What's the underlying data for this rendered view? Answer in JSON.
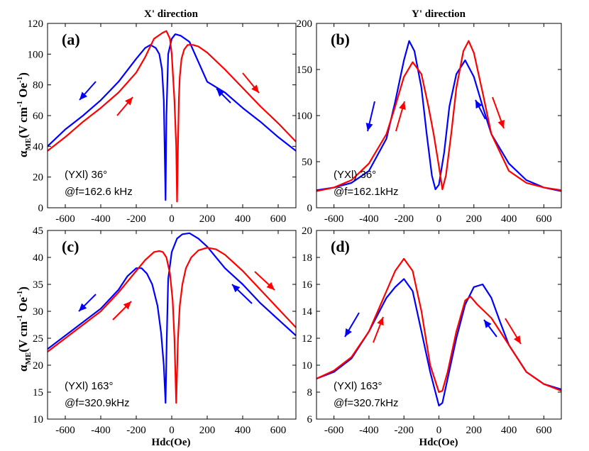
{
  "figure": {
    "header_left": "X' direction",
    "header_right": "Y' direction",
    "ylabel_main": "α",
    "ylabel_sub": "ME",
    "ylabel_top": "(V cm",
    "ylabel_exp": "-1",
    "ylabel_mid": " Oe",
    "ylabel_end": ")",
    "xlabel": "Hdc(Oe)"
  },
  "colors": {
    "up": "#0000ff",
    "down": "#ff0000"
  },
  "chart_data": [
    {
      "type": "line",
      "panel": "(a)",
      "title": "(a)",
      "annotation_line1": "(YXl) 36°",
      "annotation_line2": "@f=162.6 kHz",
      "xlabel": "",
      "ylabel": "αME(V cm-1 Oe-1)",
      "xlim": [
        -700,
        700
      ],
      "ylim": [
        0,
        120
      ],
      "xticks": [
        -600,
        -400,
        -200,
        0,
        200,
        400,
        600
      ],
      "yticks": [
        0,
        20,
        40,
        60,
        80,
        100,
        120
      ],
      "series": [
        {
          "name": "blue",
          "color": "#0000ff",
          "x": [
            -700,
            -600,
            -500,
            -400,
            -300,
            -200,
            -150,
            -120,
            -90,
            -70,
            -55,
            -45,
            -40,
            -35,
            -30,
            -20,
            0,
            20,
            50,
            100,
            150,
            200,
            300,
            400,
            500,
            600,
            700
          ],
          "y": [
            40,
            51,
            60,
            70,
            82,
            97,
            104,
            106,
            104,
            100,
            90,
            70,
            40,
            5,
            60,
            100,
            110,
            113,
            112,
            108,
            95,
            82,
            75,
            65,
            56,
            46,
            37
          ]
        },
        {
          "name": "red",
          "color": "#ff0000",
          "x": [
            -700,
            -600,
            -500,
            -400,
            -300,
            -200,
            -150,
            -100,
            -50,
            -30,
            -10,
            0,
            15,
            25,
            30,
            35,
            40,
            45,
            55,
            70,
            90,
            120,
            150,
            200,
            300,
            400,
            500,
            600,
            700
          ],
          "y": [
            37,
            46,
            56,
            65,
            75,
            88,
            98,
            110,
            114,
            115,
            110,
            100,
            70,
            40,
            4,
            40,
            70,
            85,
            97,
            103,
            106,
            106,
            105,
            101,
            90,
            78,
            66,
            55,
            43
          ]
        }
      ],
      "arrows": [
        "left-down blue",
        "right-up red",
        "left-up blue",
        "right-down red"
      ]
    },
    {
      "type": "line",
      "panel": "(b)",
      "title": "(b)",
      "annotation_line1": "(YXl) 36°",
      "annotation_line2": "@f=162.1kHz",
      "xlabel": "",
      "ylabel": "",
      "xlim": [
        -700,
        700
      ],
      "ylim": [
        0,
        200
      ],
      "xticks": [
        -600,
        -400,
        -200,
        0,
        200,
        400,
        600
      ],
      "yticks": [
        0,
        50,
        100,
        150,
        200
      ],
      "series": [
        {
          "name": "blue",
          "color": "#0000ff",
          "x": [
            -700,
            -600,
            -500,
            -400,
            -300,
            -250,
            -200,
            -170,
            -140,
            -100,
            -70,
            -40,
            -20,
            0,
            30,
            60,
            100,
            150,
            200,
            250,
            300,
            400,
            500,
            600,
            700
          ],
          "y": [
            19,
            22,
            27,
            40,
            75,
            115,
            160,
            181,
            170,
            130,
            80,
            35,
            20,
            25,
            60,
            110,
            145,
            160,
            142,
            110,
            80,
            48,
            30,
            22,
            18
          ]
        },
        {
          "name": "red",
          "color": "#ff0000",
          "x": [
            -700,
            -600,
            -500,
            -400,
            -300,
            -250,
            -200,
            -150,
            -100,
            -60,
            -30,
            0,
            20,
            40,
            70,
            100,
            140,
            170,
            200,
            250,
            300,
            400,
            500,
            600,
            700
          ],
          "y": [
            18,
            22,
            30,
            48,
            80,
            110,
            142,
            158,
            145,
            110,
            80,
            45,
            20,
            35,
            80,
            130,
            170,
            181,
            168,
            125,
            80,
            40,
            27,
            22,
            19
          ]
        }
      ],
      "arrows": [
        "left-down blue",
        "right-up red",
        "left-up blue",
        "right-down red"
      ]
    },
    {
      "type": "line",
      "panel": "(c)",
      "title": "(c)",
      "annotation_line1": "(YXl) 163°",
      "annotation_line2": "@f=320.9kHz",
      "xlabel": "Hdc(Oe)",
      "ylabel": "αME(V cm-1 Oe-1)",
      "xlim": [
        -700,
        700
      ],
      "ylim": [
        10,
        45
      ],
      "xticks": [
        -600,
        -400,
        -200,
        0,
        200,
        400,
        600
      ],
      "yticks": [
        10,
        15,
        20,
        25,
        30,
        35,
        40,
        45
      ],
      "series": [
        {
          "name": "blue",
          "color": "#0000ff",
          "x": [
            -700,
            -600,
            -500,
            -400,
            -300,
            -250,
            -200,
            -170,
            -140,
            -110,
            -80,
            -60,
            -45,
            -35,
            -28,
            -20,
            0,
            30,
            60,
            100,
            150,
            200,
            300,
            400,
            500,
            600,
            700
          ],
          "y": [
            23,
            25.5,
            28,
            30.5,
            34,
            36.5,
            38,
            38,
            37,
            35,
            31,
            26,
            20,
            13,
            25,
            36,
            41,
            43.5,
            44.3,
            44.5,
            43.5,
            42,
            38,
            35,
            31.5,
            28.5,
            25.5
          ]
        },
        {
          "name": "red",
          "color": "#ff0000",
          "x": [
            -700,
            -600,
            -500,
            -400,
            -300,
            -200,
            -150,
            -100,
            -70,
            -50,
            -30,
            -10,
            5,
            15,
            25,
            35,
            45,
            60,
            80,
            110,
            150,
            200,
            250,
            300,
            400,
            500,
            600,
            700
          ],
          "y": [
            22.5,
            25,
            27.5,
            30,
            33.5,
            37.5,
            39.5,
            41,
            41.2,
            41,
            40,
            37,
            32,
            25,
            13,
            25,
            31,
            35,
            38,
            40,
            41.3,
            41.8,
            41.5,
            40.5,
            37.5,
            34,
            30.5,
            27
          ]
        }
      ],
      "arrows": [
        "left-down blue",
        "right-up red",
        "left-up blue",
        "right-down red"
      ]
    },
    {
      "type": "line",
      "panel": "(d)",
      "title": "(d)",
      "annotation_line1": "(YXl) 163°",
      "annotation_line2": "@f=320.7kHz",
      "xlabel": "Hdc(Oe)",
      "ylabel": "",
      "xlim": [
        -700,
        700
      ],
      "ylim": [
        6,
        20
      ],
      "xticks": [
        -600,
        -400,
        -200,
        0,
        200,
        400,
        600
      ],
      "yticks": [
        6,
        8,
        10,
        12,
        14,
        16,
        18,
        20
      ],
      "series": [
        {
          "name": "blue",
          "color": "#0000ff",
          "x": [
            -700,
            -600,
            -500,
            -400,
            -300,
            -250,
            -200,
            -150,
            -100,
            -50,
            0,
            20,
            50,
            100,
            150,
            200,
            250,
            300,
            350,
            400,
            500,
            600,
            700
          ],
          "y": [
            9,
            9.5,
            10.5,
            12.5,
            15,
            15.8,
            16.4,
            15.5,
            12.5,
            9.5,
            7,
            7.2,
            9,
            12,
            14.5,
            15.8,
            16,
            15,
            13.2,
            11.5,
            9.5,
            8.6,
            8.2
          ]
        },
        {
          "name": "red",
          "color": "#ff0000",
          "x": [
            -700,
            -600,
            -500,
            -400,
            -350,
            -300,
            -250,
            -200,
            -150,
            -100,
            -50,
            0,
            20,
            50,
            100,
            150,
            180,
            220,
            260,
            300,
            350,
            400,
            500,
            600,
            700
          ],
          "y": [
            9,
            9.6,
            10.6,
            12.5,
            14,
            15.5,
            17,
            17.9,
            17,
            14,
            10,
            8,
            8.1,
            9.5,
            12.5,
            14.8,
            15.1,
            14.5,
            14,
            13.5,
            12.5,
            11.5,
            9.5,
            8.6,
            8.1
          ]
        }
      ],
      "arrows": [
        "left-down blue",
        "right-up red",
        "left-up blue",
        "right-down red"
      ]
    }
  ]
}
